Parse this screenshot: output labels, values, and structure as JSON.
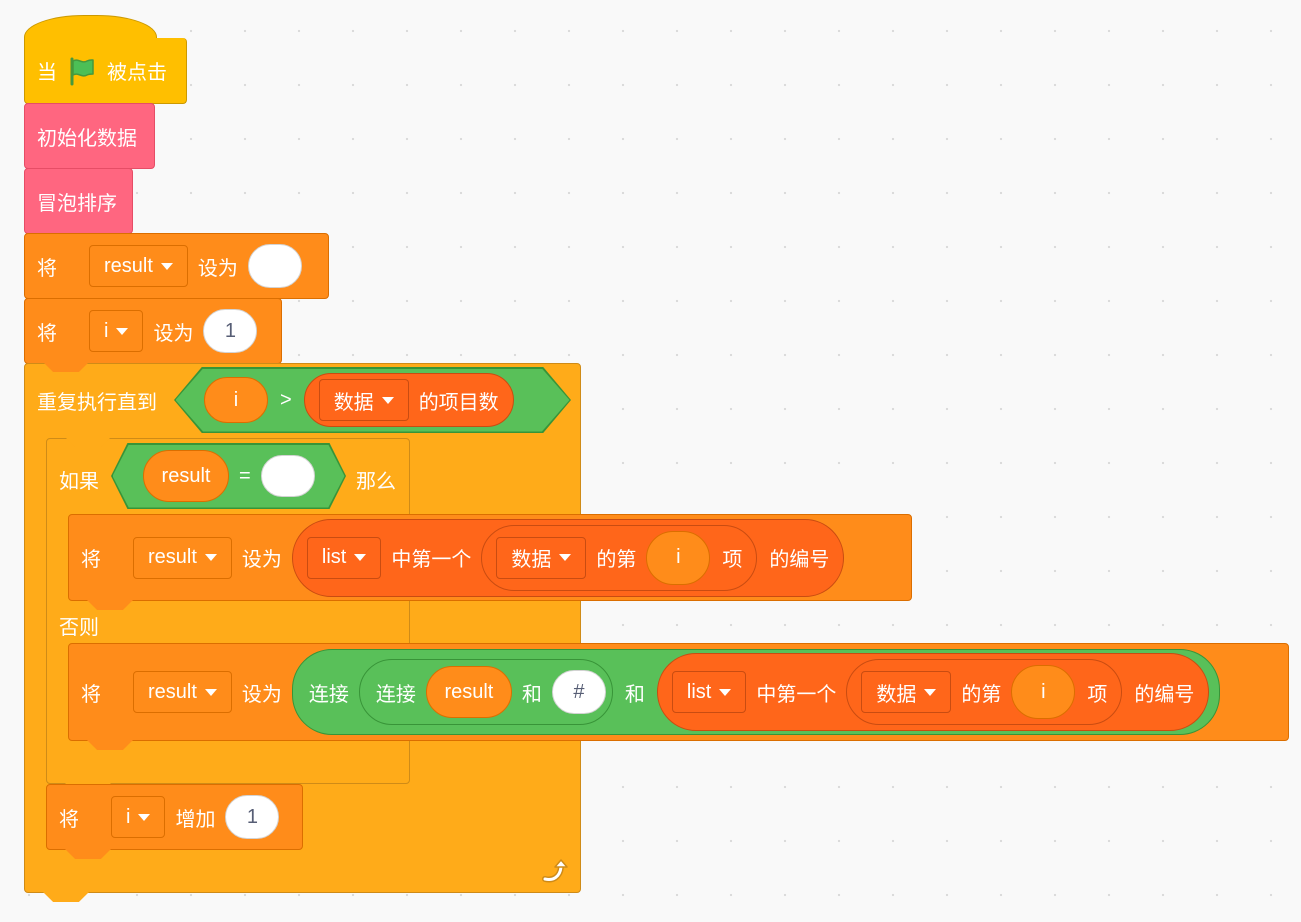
{
  "hat": {
    "when": "当",
    "clicked": "被点击",
    "flag_icon": "green-flag-icon"
  },
  "calls": {
    "init_data": "初始化数据",
    "bubble_sort": "冒泡排序"
  },
  "set1": {
    "verb": "将",
    "variable": "result",
    "to": "设为",
    "value": ""
  },
  "set2": {
    "verb": "将",
    "variable": "i",
    "to": "设为",
    "value": "1"
  },
  "repeat_until": {
    "label": "重复执行直到",
    "cond": {
      "left": "i",
      "op": ">",
      "list": "数据",
      "suffix": "的项目数"
    },
    "loop_icon": "loop-arrow-icon"
  },
  "if_else": {
    "if_label": "如果",
    "then_label": "那么",
    "else_label": "否则",
    "cond": {
      "left": "result",
      "op": "=",
      "right": ""
    },
    "then_set": {
      "verb": "将",
      "variable": "result",
      "to": "设为",
      "list": "list",
      "first_of": "中第一个",
      "inner_list": "数据",
      "item_of": "的第",
      "index": "i",
      "item": "项",
      "index_of": "的编号"
    },
    "else_set": {
      "verb": "将",
      "variable": "result",
      "to": "设为",
      "join": "连接",
      "inner_join": "连接",
      "join_a": "result",
      "and1": "和",
      "join_b": "#",
      "and2": "和",
      "list": "list",
      "first_of": "中第一个",
      "inner_list": "数据",
      "item_of": "的第",
      "index": "i",
      "item": "项",
      "index_of": "的编号"
    }
  },
  "change": {
    "verb": "将",
    "variable": "i",
    "by": "增加",
    "value": "1"
  }
}
